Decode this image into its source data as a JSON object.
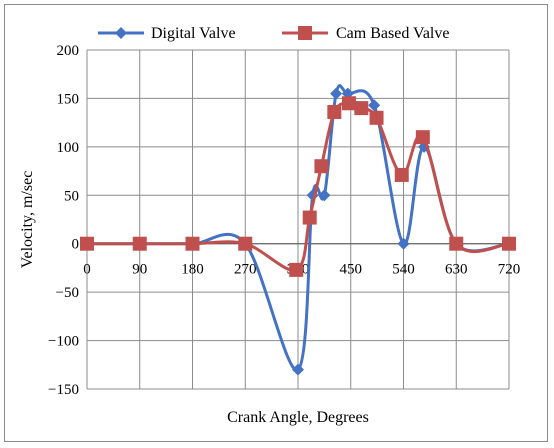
{
  "chart_data": {
    "type": "line",
    "title": "",
    "xlabel": "Crank Angle, Degrees",
    "ylabel": "Velocity, m/sec",
    "xlim": [
      0,
      720
    ],
    "ylim": [
      -150,
      200
    ],
    "x_ticks": [
      0,
      90,
      180,
      270,
      360,
      450,
      540,
      630,
      720
    ],
    "y_ticks": [
      -150,
      -100,
      -50,
      0,
      50,
      100,
      150,
      200
    ],
    "grid": true,
    "legend_position": "top",
    "series": [
      {
        "name": "Digital Valve",
        "color": "#4472C4",
        "marker": "diamond",
        "points": [
          [
            0,
            0
          ],
          [
            90,
            0
          ],
          [
            180,
            0
          ],
          [
            270,
            0
          ],
          [
            360,
            -130
          ],
          [
            385,
            50
          ],
          [
            405,
            50
          ],
          [
            425,
            155
          ],
          [
            445,
            155
          ],
          [
            490,
            143
          ],
          [
            540,
            0
          ],
          [
            575,
            100
          ],
          [
            630,
            0
          ],
          [
            720,
            0
          ]
        ]
      },
      {
        "name": "Cam Based Valve",
        "color": "#C0504D",
        "marker": "square",
        "points": [
          [
            0,
            0
          ],
          [
            90,
            0
          ],
          [
            180,
            0
          ],
          [
            270,
            0
          ],
          [
            357,
            -27
          ],
          [
            380,
            27
          ],
          [
            400,
            80
          ],
          [
            422,
            136
          ],
          [
            447,
            145
          ],
          [
            468,
            140
          ],
          [
            494,
            130
          ],
          [
            537,
            71
          ],
          [
            573,
            110
          ],
          [
            630,
            0
          ],
          [
            720,
            0
          ]
        ]
      }
    ]
  }
}
